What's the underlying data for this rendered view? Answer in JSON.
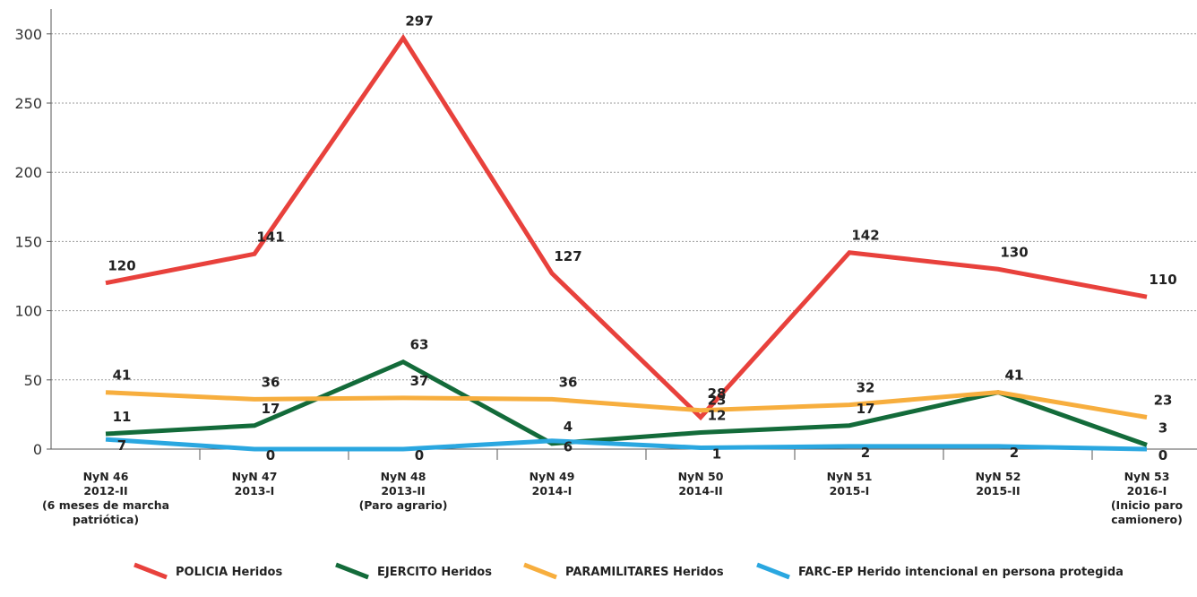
{
  "chart_data": {
    "type": "line",
    "categories": [
      [
        "NyN 46",
        "2012-II",
        "(6 meses de marcha",
        "patriótica)"
      ],
      [
        "NyN 47",
        "2013-I"
      ],
      [
        "NyN 48",
        "2013-II",
        "(Paro agrario)"
      ],
      [
        "NyN 49",
        "2014-I"
      ],
      [
        "NyN 50",
        "2014-II"
      ],
      [
        "NyN 51",
        "2015-I"
      ],
      [
        "NyN 52",
        "2015-II"
      ],
      [
        "NyN 53",
        "2016-I",
        "(Inicio paro",
        "camionero)"
      ]
    ],
    "series": [
      {
        "name": "POLICIA Heridos",
        "color": "#e8413c",
        "values": [
          120,
          141,
          297,
          127,
          23,
          142,
          130,
          110
        ]
      },
      {
        "name": "EJERCITO Heridos",
        "color": "#136b3a",
        "values": [
          11,
          17,
          63,
          4,
          12,
          17,
          41,
          3
        ]
      },
      {
        "name": "PARAMILITARES Heridos",
        "color": "#f7ae3e",
        "values": [
          41,
          36,
          37,
          36,
          28,
          32,
          41,
          23
        ]
      },
      {
        "name": "FARC-EP Herido intencional en persona protegida",
        "color": "#2aa7e0",
        "values": [
          7,
          0,
          0,
          6,
          1,
          2,
          2,
          0
        ]
      }
    ],
    "ylim": [
      0,
      318
    ],
    "yticks": [
      0,
      50,
      100,
      150,
      200,
      250,
      300
    ],
    "grid": true,
    "legend": "bottom"
  }
}
